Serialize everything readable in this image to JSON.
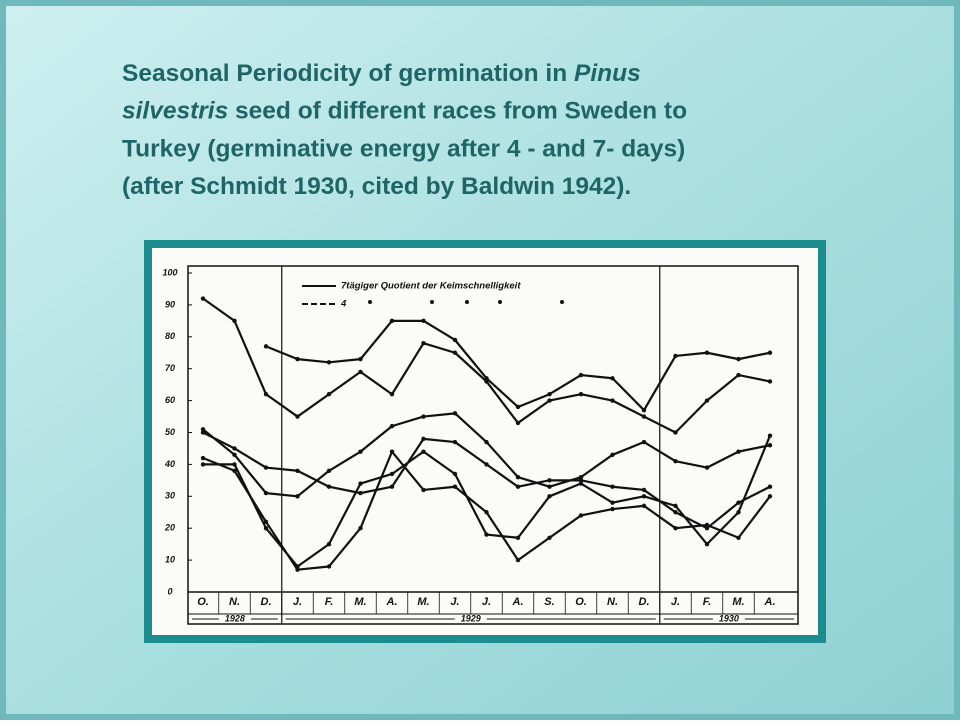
{
  "slide": {
    "title_lines": [
      [
        {
          "text": "Seasonal Periodicity of germination in "
        },
        {
          "text": "Pinus",
          "italic": true
        }
      ],
      [
        {
          "text": "silvestris",
          "italic": true
        },
        {
          "text": " seed of different races from Sweden to"
        }
      ],
      [
        {
          "text": "Turkey (germinative energy after 4 - and 7- days)"
        }
      ],
      [
        {
          "text": "(after Schmidt 1930, cited by Baldwin 1942)."
        }
      ]
    ]
  },
  "chart_data": {
    "type": "line",
    "legend": [
      "7tägiger Quotient der Keimschnelligkeit",
      "4"
    ],
    "categories": [
      "O.",
      "N.",
      "D.",
      "J.",
      "F.",
      "M.",
      "A.",
      "M.",
      "J.",
      "J.",
      "A.",
      "S.",
      "O.",
      "N.",
      "D.",
      "J.",
      "F.",
      "M.",
      "A."
    ],
    "year_groups": [
      {
        "label": "1928",
        "start": 0,
        "end": 2
      },
      {
        "label": "1929",
        "start": 3,
        "end": 14
      },
      {
        "label": "1930",
        "start": 15,
        "end": 18
      }
    ],
    "ylim": [
      0,
      100
    ],
    "yticks": [
      0,
      10,
      20,
      30,
      40,
      50,
      60,
      70,
      80,
      90,
      100
    ],
    "color": "#111111",
    "series": [
      {
        "values": [
          92,
          85,
          62,
          55,
          62,
          69,
          62,
          78,
          75,
          66,
          53,
          60,
          62,
          60,
          55,
          50,
          60,
          68,
          66
        ]
      },
      {
        "values": [
          null,
          null,
          77,
          73,
          72,
          73,
          85,
          85,
          79,
          67,
          58,
          62,
          68,
          67,
          57,
          74,
          75,
          73,
          75
        ]
      },
      {
        "values": [
          51,
          43,
          31,
          30,
          38,
          44,
          52,
          55,
          56,
          47,
          36,
          33,
          36,
          43,
          47,
          41,
          39,
          44,
          46
        ]
      },
      {
        "values": [
          50,
          45,
          39,
          38,
          33,
          31,
          33,
          48,
          47,
          40,
          33,
          35,
          35,
          33,
          32,
          25,
          20,
          28,
          33
        ]
      },
      {
        "values": [
          42,
          38,
          22,
          7,
          8,
          20,
          44,
          32,
          33,
          25,
          10,
          17,
          24,
          26,
          27,
          20,
          21,
          17,
          30
        ]
      },
      {
        "values": [
          40,
          40,
          20,
          8,
          15,
          34,
          37,
          44,
          37,
          18,
          17,
          30,
          34,
          28,
          30,
          27,
          15,
          25,
          49
        ]
      }
    ]
  }
}
